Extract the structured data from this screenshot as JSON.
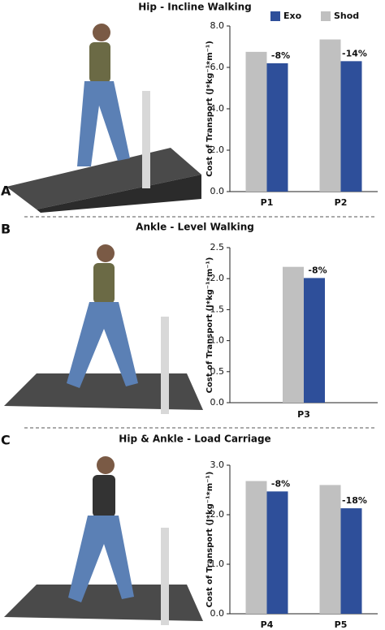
{
  "chart_data": [
    {
      "type": "bar",
      "panel_label": "A",
      "title": "Hip - Incline Walking",
      "ylabel": "Cost of Transport (J*kg⁻¹*m⁻¹)",
      "categories": [
        "P1",
        "P2"
      ],
      "series": [
        {
          "name": "Exo",
          "color": "#2e4f9a",
          "values": [
            6.2,
            6.3
          ]
        },
        {
          "name": "Shod",
          "color": "#c0c0c0",
          "values": [
            6.75,
            7.35
          ]
        }
      ],
      "annotations": [
        "-8%",
        "-14%"
      ],
      "ylim": [
        0,
        8
      ],
      "yticks": [
        {
          "value": 0,
          "label": "0.0"
        },
        {
          "value": 2,
          "label": "2.0"
        },
        {
          "value": 4,
          "label": "4.0"
        },
        {
          "value": 6,
          "label": "6.0"
        },
        {
          "value": 8,
          "label": "8.0"
        }
      ],
      "legend": true,
      "grid": false
    },
    {
      "type": "bar",
      "panel_label": "B",
      "title": "Ankle - Level Walking",
      "ylabel": "Cost of Transport (J*kg⁻¹*m⁻¹)",
      "categories": [
        "P3"
      ],
      "series": [
        {
          "name": "Exo",
          "color": "#2e4f9a",
          "values": [
            2.01
          ]
        },
        {
          "name": "Shod",
          "color": "#c0c0c0",
          "values": [
            2.19
          ]
        }
      ],
      "annotations": [
        "-8%"
      ],
      "ylim": [
        0,
        2.5
      ],
      "yticks": [
        {
          "value": 0,
          "label": "0.0"
        },
        0.5,
        {
          "value": 1,
          "label": "1.0"
        },
        1.5,
        {
          "value": 2,
          "label": "2.0"
        },
        2.5
      ],
      "legend": false,
      "grid": false
    },
    {
      "type": "bar",
      "panel_label": "C",
      "title": "Hip & Ankle - Load Carriage",
      "ylabel": "Cost of Transport (J*kg⁻¹*m⁻¹)",
      "categories": [
        "P4",
        "P5"
      ],
      "series": [
        {
          "name": "Exo",
          "color": "#2e4f9a",
          "values": [
            2.47,
            2.13
          ]
        },
        {
          "name": "Shod",
          "color": "#c0c0c0",
          "values": [
            2.68,
            2.6
          ]
        }
      ],
      "annotations": [
        "-8%",
        "-18%"
      ],
      "ylim": [
        0,
        3
      ],
      "yticks": [
        {
          "value": 0,
          "label": "0.0"
        },
        {
          "value": 1,
          "label": "1.0"
        },
        {
          "value": 2,
          "label": "2.0"
        },
        {
          "value": 3,
          "label": "3.0"
        }
      ],
      "legend": false,
      "grid": false
    }
  ]
}
